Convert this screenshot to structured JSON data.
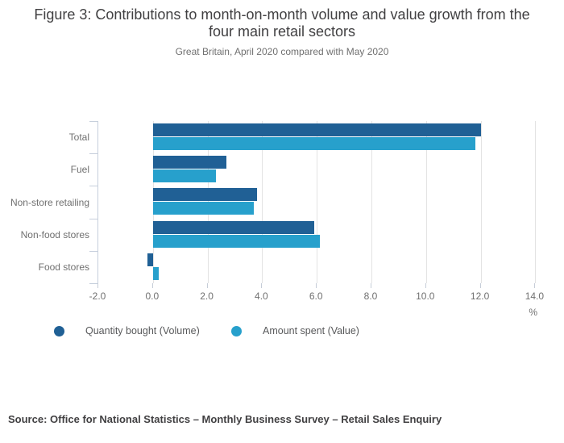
{
  "header": {
    "title": "Figure 3: Contributions to month-on-month volume and value growth from the four main retail sectors",
    "subtitle": "Great Britain, April 2020 compared with May 2020"
  },
  "chart_data": {
    "type": "bar",
    "orientation": "horizontal",
    "title": "Figure 3: Contributions to month-on-month volume and value growth from the four main retail sectors",
    "subtitle": "Great Britain, April 2020 compared with May 2020",
    "categories": [
      "Total",
      "Fuel",
      "Non-store retailing",
      "Non-food stores",
      "Food stores"
    ],
    "series": [
      {
        "name": "Quantity bought (Volume)",
        "color": "#206095",
        "values": [
          12.0,
          2.7,
          3.8,
          5.9,
          -0.2
        ]
      },
      {
        "name": "Amount spent (Value)",
        "color": "#27a0cc",
        "values": [
          11.8,
          2.3,
          3.7,
          6.1,
          0.2
        ]
      }
    ],
    "x_axis": {
      "min": -2.0,
      "max": 14.0,
      "ticks": [
        -2.0,
        0.0,
        2.0,
        4.0,
        6.0,
        8.0,
        10.0,
        12.0,
        14.0
      ],
      "tick_labels": [
        "-2.0",
        "0.0",
        "2.0",
        "4.0",
        "6.0",
        "8.0",
        "10.0",
        "12.0",
        "14.0"
      ],
      "unit_label": "%"
    },
    "grid": true,
    "legend_position": "bottom"
  },
  "colors": {
    "volume_bar": "#206095",
    "value_bar": "#27a0cc",
    "gridline": "#e3e3e3",
    "axis_line": "#c6cfdc",
    "text_gray": "#707070",
    "title_text": "#414042"
  },
  "source": {
    "text": "Source: Office for National Statistics – Monthly Business Survey – Retail Sales Enquiry"
  }
}
